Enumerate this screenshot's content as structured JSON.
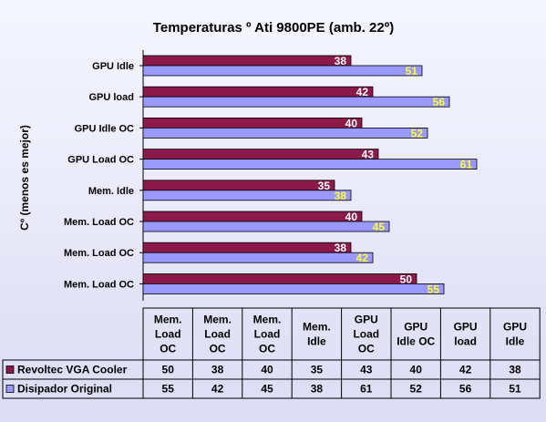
{
  "chart_data": {
    "type": "bar",
    "orientation": "horizontal",
    "title": "Temperaturas º Ati 9800PE (amb. 22º)",
    "ylabel": "Cº (menos es mejor)",
    "xlim": [
      0,
      61
    ],
    "categories": [
      "GPU Idle",
      "GPU load",
      "GPU Idle OC",
      "GPU Load OC",
      "Mem. Idle",
      "Mem. Load OC",
      "Mem. Load OC",
      "Mem. Load OC"
    ],
    "series": [
      {
        "name": "Revoltec VGA Cooler",
        "color": "#8b1a4a",
        "values": [
          38,
          42,
          40,
          43,
          35,
          40,
          38,
          50
        ]
      },
      {
        "name": "Disipador Original",
        "color": "#9999ff",
        "values": [
          51,
          56,
          52,
          61,
          38,
          45,
          42,
          55
        ]
      }
    ],
    "table": {
      "headers": [
        [
          "Mem.",
          "Load",
          "OC"
        ],
        [
          "Mem.",
          "Load",
          "OC"
        ],
        [
          "Mem.",
          "Load",
          "OC"
        ],
        [
          "Mem.",
          "Idle"
        ],
        [
          "GPU",
          "Load",
          "OC"
        ],
        [
          "GPU",
          "Idle OC"
        ],
        [
          "GPU",
          "load"
        ],
        [
          "GPU",
          "Idle"
        ]
      ],
      "rows": [
        {
          "name": "Revoltec VGA Cooler",
          "values": [
            "50",
            "38",
            "40",
            "35",
            "43",
            "40",
            "42",
            "38"
          ]
        },
        {
          "name": "Disipador Original",
          "values": [
            "55",
            "42",
            "45",
            "38",
            "61",
            "52",
            "56",
            "51"
          ]
        }
      ]
    }
  }
}
